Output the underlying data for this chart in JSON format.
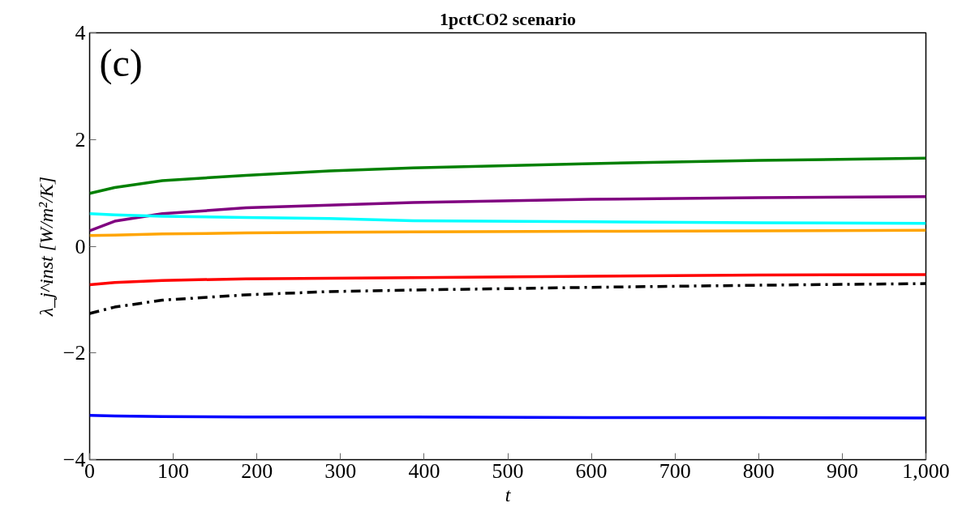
{
  "chart_data": {
    "type": "line",
    "title": "1pctCO2 scenario",
    "xlabel": "t",
    "ylabel": "λ_j^inst [W/m²/K]",
    "annotations": [
      "(c)"
    ],
    "xlim": [
      0,
      1000
    ],
    "ylim": [
      -4,
      4
    ],
    "xticks": [
      0,
      100,
      200,
      300,
      400,
      500,
      600,
      700,
      800,
      900,
      {
        "value": 1000,
        "label": "1,000"
      }
    ],
    "yticks": [
      {
        "value": -4,
        "label": "−4"
      },
      {
        "value": -2,
        "label": "−2"
      },
      0,
      2,
      4
    ],
    "grid": false,
    "marker": "none",
    "x": [
      0,
      30,
      87,
      187,
      287,
      387,
      600,
      800,
      1000
    ],
    "series": [
      {
        "color": "#008000",
        "line_style": "solid",
        "values": [
          0.99,
          1.1,
          1.23,
          1.33,
          1.41,
          1.47,
          1.55,
          1.61,
          1.65
        ]
      },
      {
        "color": "#800080",
        "line_style": "solid",
        "values": [
          0.29,
          0.47,
          0.61,
          0.72,
          0.77,
          0.82,
          0.88,
          0.91,
          0.93
        ]
      },
      {
        "color": "#00ffff",
        "line_style": "solid",
        "values": [
          0.61,
          0.59,
          0.56,
          0.54,
          0.52,
          0.48,
          0.46,
          0.44,
          0.43
        ]
      },
      {
        "color": "#ffa500",
        "line_style": "solid",
        "values": [
          0.2,
          0.21,
          0.23,
          0.25,
          0.26,
          0.27,
          0.28,
          0.29,
          0.3
        ]
      },
      {
        "color": "#ff0000",
        "line_style": "solid",
        "values": [
          -0.72,
          -0.68,
          -0.64,
          -0.61,
          -0.6,
          -0.59,
          -0.56,
          -0.54,
          -0.53
        ]
      },
      {
        "color": "#000000",
        "line_style": "dashdot",
        "values": [
          -1.26,
          -1.14,
          -1.01,
          -0.91,
          -0.85,
          -0.82,
          -0.77,
          -0.73,
          -0.7
        ]
      },
      {
        "color": "#0000ff",
        "line_style": "solid",
        "values": [
          -3.17,
          -3.18,
          -3.19,
          -3.2,
          -3.2,
          -3.2,
          -3.21,
          -3.21,
          -3.22
        ]
      }
    ]
  }
}
